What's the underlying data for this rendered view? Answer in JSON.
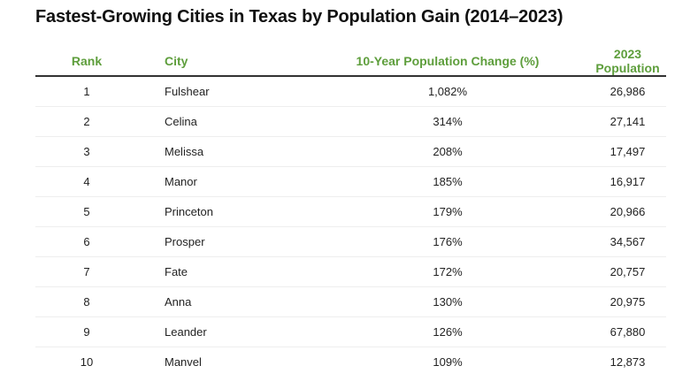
{
  "header": {
    "title": "Fastest-Growing Cities in Texas by Population Gain (2014–2023)"
  },
  "table": {
    "columns": [
      "Rank",
      "City",
      "10-Year Population Change (%)",
      "2023 Population"
    ],
    "rows": [
      [
        "1",
        "Fulshear",
        "1,082%",
        "26,986"
      ],
      [
        "2",
        "Celina",
        "314%",
        "27,141"
      ],
      [
        "3",
        "Melissa",
        "208%",
        "17,497"
      ],
      [
        "4",
        "Manor",
        "185%",
        "16,917"
      ],
      [
        "5",
        "Princeton",
        "179%",
        "20,966"
      ],
      [
        "6",
        "Prosper",
        "176%",
        "34,567"
      ],
      [
        "7",
        "Fate",
        "172%",
        "20,757"
      ],
      [
        "8",
        "Anna",
        "130%",
        "20,975"
      ],
      [
        "9",
        "Leander",
        "126%",
        "67,880"
      ],
      [
        "10",
        "Manvel",
        "109%",
        "12,873"
      ]
    ]
  }
}
